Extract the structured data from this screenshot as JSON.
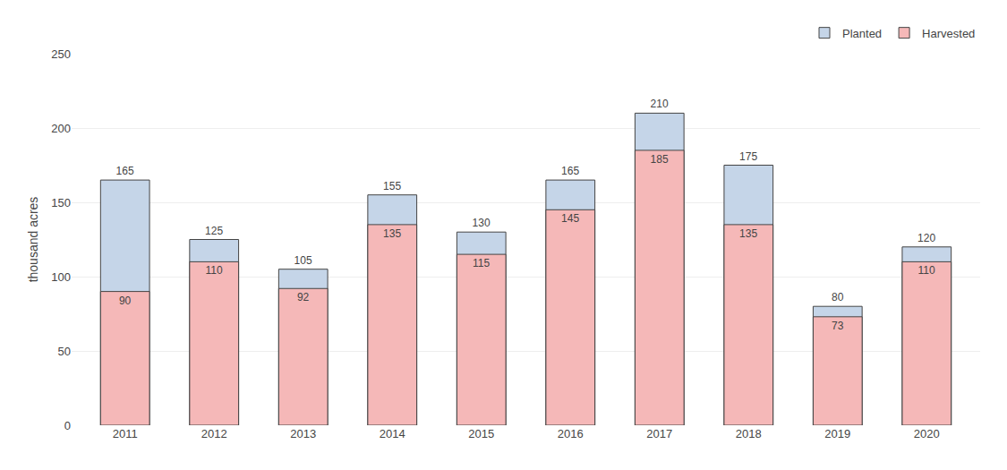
{
  "chart_data": {
    "type": "bar",
    "ylabel": "thousand acres",
    "categories": [
      "2011",
      "2012",
      "2013",
      "2014",
      "2015",
      "2016",
      "2017",
      "2018",
      "2019",
      "2020"
    ],
    "series": [
      {
        "name": "Planted",
        "color": "#c5d5e8",
        "values": [
          165,
          125,
          105,
          155,
          130,
          165,
          210,
          175,
          80,
          120
        ]
      },
      {
        "name": "Harvested",
        "color": "#f5b8b8",
        "values": [
          90,
          110,
          92,
          135,
          115,
          145,
          185,
          135,
          73,
          110
        ]
      }
    ],
    "stacked": false,
    "data_labels": true,
    "ylim": [
      0,
      250
    ],
    "yticks": [
      0,
      50,
      100,
      150,
      200,
      250
    ],
    "grid": true,
    "legend": "upper right"
  }
}
